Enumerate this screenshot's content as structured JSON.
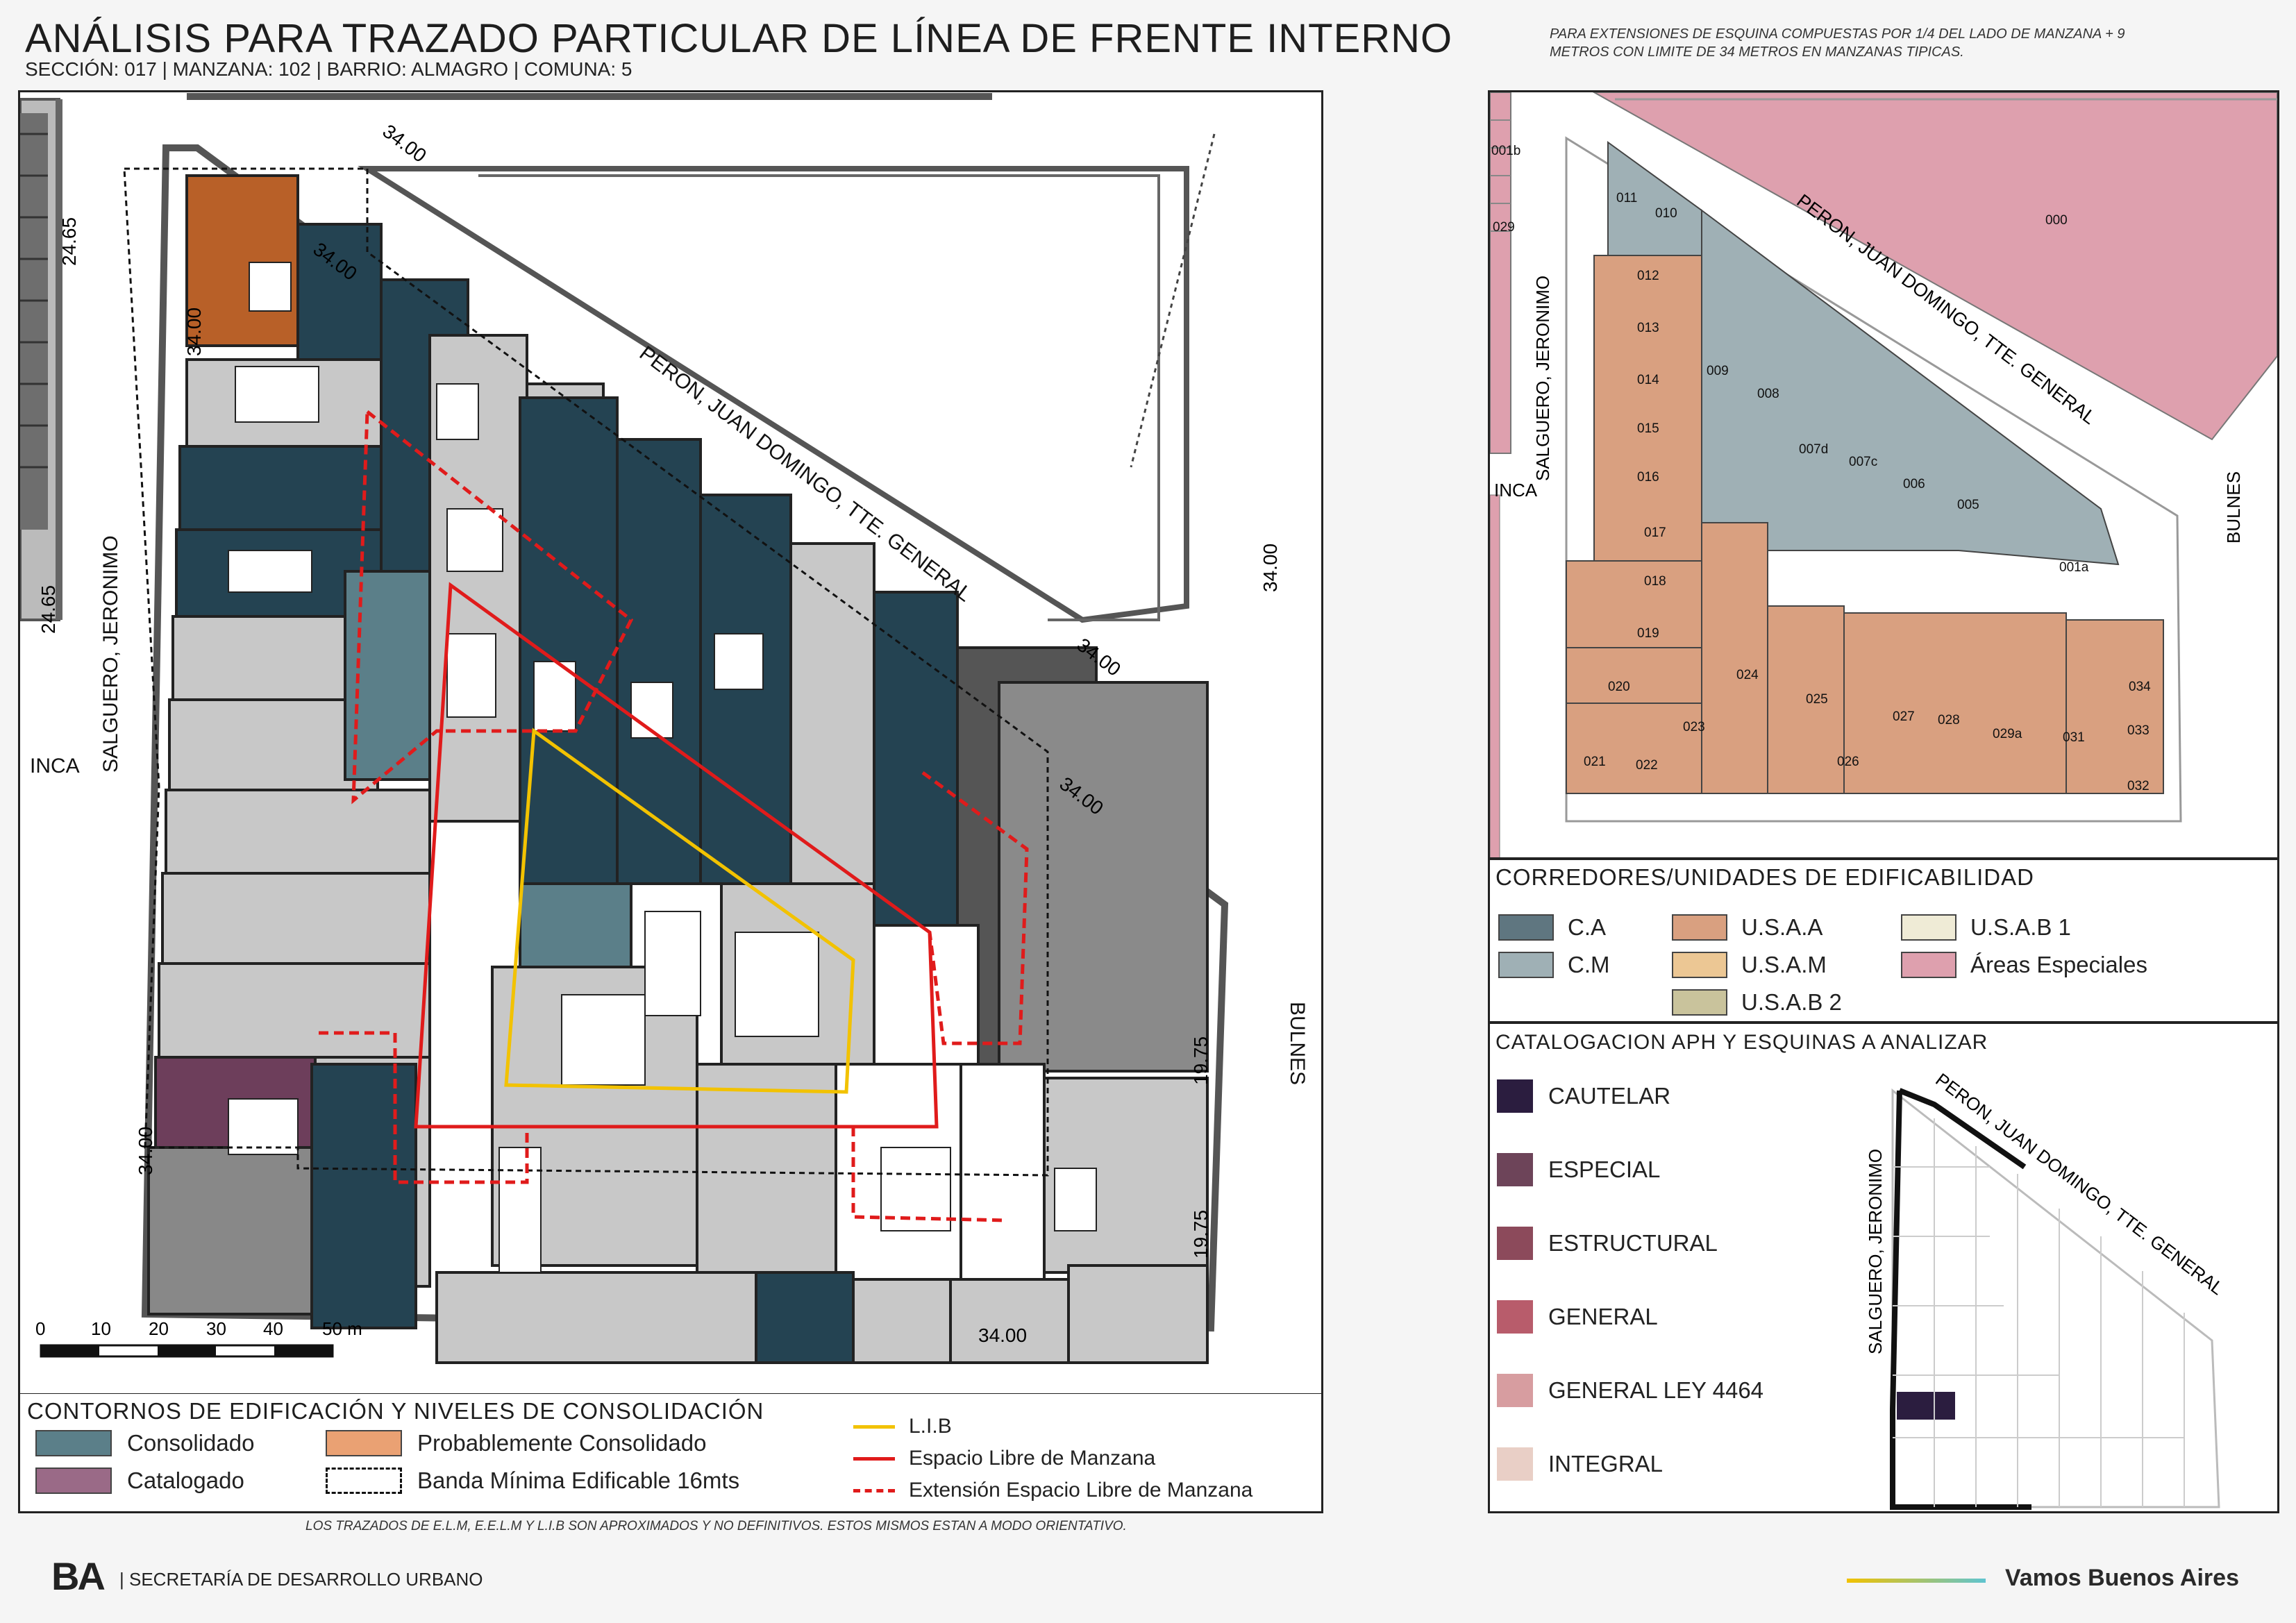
{
  "header": {
    "title": "ANÁLISIS PARA TRAZADO PARTICULAR DE LÍNEA DE FRENTE INTERNO",
    "subtitle": "SECCIÓN: 017 |  MANZANA: 102 | BARRIO: ALMAGRO | COMUNA: 5",
    "note_line1": "PARA EXTENSIONES DE ESQUINA COMPUESTAS POR 1/4 DEL LADO DE MANZANA + 9",
    "note_line2": "METROS CON LIMITE DE 34 METROS EN MANZANAS TIPICAS."
  },
  "main_map": {
    "streets": {
      "peron": "PERON, JUAN DOMINGO, TTE. GENERAL",
      "salguero": "SALGUERO, JERONIMO",
      "bulnes": "BULNES",
      "inca": "INCA"
    },
    "dims": {
      "d3400": "34.00",
      "d2465": "24.65",
      "d1975": "19.75"
    },
    "scale": [
      "0",
      "10",
      "20",
      "30",
      "40",
      "50 m"
    ]
  },
  "consolidation_legend": {
    "title": "CONTORNOS DE EDIFICACIÓN Y NIVELES DE CONSOLIDACIÓN",
    "consolidado": "Consolidado",
    "probablemente": "Probablemente Consolidado",
    "catalogado": "Catalogado",
    "banda": "Banda Mínima Edificable 16mts",
    "lib": "L.I.B",
    "elm": "Espacio Libre de Manzana",
    "eelm": "Extensión Espacio Libre de Manzana",
    "colors": {
      "consolidado": "#5b7f89",
      "probablemente": "#eaa173",
      "catalogado": "#9a6a87",
      "lib": "#f2c200",
      "elm": "#e01b1b"
    }
  },
  "footer_note": "LOS TRAZADOS DE E.L.M, E.E.L.M Y L.I.B SON APROXIMADOS Y NO DEFINITIVOS. ESTOS MISMOS ESTAN A MODO ORIENTATIVO.",
  "parcel_map": {
    "labels": [
      "011",
      "010",
      "012",
      "013",
      "014",
      "015",
      "016",
      "017",
      "018",
      "019",
      "020",
      "021",
      "022",
      "023",
      "024",
      "025",
      "026",
      "027",
      "028",
      "029a",
      "031",
      "032",
      "033",
      "034",
      "009",
      "008",
      "007d",
      "007c",
      "006",
      "005",
      "001a",
      "000",
      "001b",
      "029"
    ],
    "streets": {
      "peron": "PERON, JUAN DOMINGO, TTE. GENERAL",
      "salguero": "SALGUERO, JERONIMO",
      "bulnes": "BULNES",
      "inca": "INCA"
    }
  },
  "corridor_legend": {
    "title": "CORREDORES/UNIDADES DE EDIFICABILIDAD",
    "items": [
      {
        "label": "C.A",
        "color": "#5f7680"
      },
      {
        "label": "U.S.A.A",
        "color": "#d9a080"
      },
      {
        "label": "U.S.A.B 1",
        "color": "#efebd6"
      },
      {
        "label": "C.M",
        "color": "#9fb0b5"
      },
      {
        "label": "U.S.A.M",
        "color": "#ecc794"
      },
      {
        "label": "Áreas Especiales",
        "color": "#dea0ae"
      },
      {
        "label": "U.S.A.B 2",
        "color": "#c9c39c"
      }
    ]
  },
  "aph_legend": {
    "title": "CATALOGACION APH Y ESQUINAS A ANALIZAR",
    "items": [
      {
        "label": "CAUTELAR",
        "color": "#2b1d3f"
      },
      {
        "label": "ESPECIAL",
        "color": "#6d4459"
      },
      {
        "label": "ESTRUCTURAL",
        "color": "#8c4a5b"
      },
      {
        "label": "GENERAL",
        "color": "#b85c6b"
      },
      {
        "label": "GENERAL LEY 4464",
        "color": "#d79da0"
      },
      {
        "label": "INTEGRAL",
        "color": "#e9cfc6"
      }
    ],
    "mini_streets": {
      "peron": "PERON, JUAN DOMINGO, TTE. GENERAL",
      "salguero": "SALGUERO, JERONIMO"
    }
  },
  "footer": {
    "logo": "BA",
    "org": "| SECRETARÍA DE DESARROLLO URBANO",
    "slogan": "Vamos Buenos Aires"
  }
}
